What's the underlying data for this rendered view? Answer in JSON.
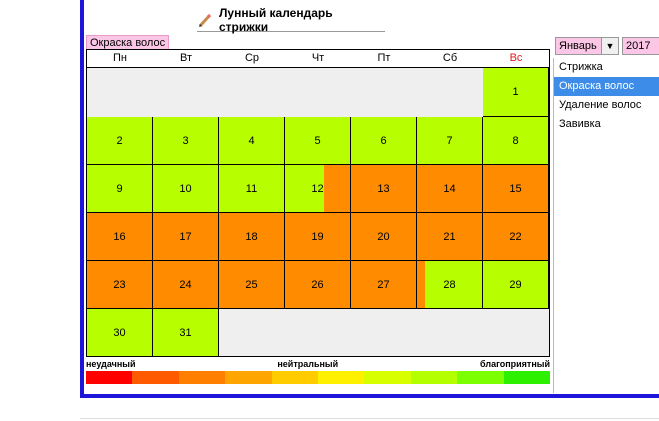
{
  "title": "Лунный календарь стрижки",
  "category_tag": "Окраска волос",
  "month_select": "Январь",
  "year_select": "2017",
  "weekdays": [
    "Пн",
    "Вт",
    "Ср",
    "Чт",
    "Пт",
    "Сб",
    "Вс"
  ],
  "days": [
    {
      "day": "1",
      "row": 0,
      "col": 6,
      "type": "good"
    },
    {
      "day": "2",
      "row": 1,
      "col": 0,
      "type": "good"
    },
    {
      "day": "3",
      "row": 1,
      "col": 1,
      "type": "good"
    },
    {
      "day": "4",
      "row": 1,
      "col": 2,
      "type": "good"
    },
    {
      "day": "5",
      "row": 1,
      "col": 3,
      "type": "good"
    },
    {
      "day": "6",
      "row": 1,
      "col": 4,
      "type": "good"
    },
    {
      "day": "7",
      "row": 1,
      "col": 5,
      "type": "good"
    },
    {
      "day": "8",
      "row": 1,
      "col": 6,
      "type": "good"
    },
    {
      "day": "9",
      "row": 2,
      "col": 0,
      "type": "good"
    },
    {
      "day": "10",
      "row": 2,
      "col": 1,
      "type": "good"
    },
    {
      "day": "11",
      "row": 2,
      "col": 2,
      "type": "good"
    },
    {
      "day": "12",
      "row": 2,
      "col": 3,
      "type": "split-good-bad"
    },
    {
      "day": "13",
      "row": 2,
      "col": 4,
      "type": "bad"
    },
    {
      "day": "14",
      "row": 2,
      "col": 5,
      "type": "bad"
    },
    {
      "day": "15",
      "row": 2,
      "col": 6,
      "type": "bad"
    },
    {
      "day": "16",
      "row": 3,
      "col": 0,
      "type": "bad"
    },
    {
      "day": "17",
      "row": 3,
      "col": 1,
      "type": "bad"
    },
    {
      "day": "18",
      "row": 3,
      "col": 2,
      "type": "bad"
    },
    {
      "day": "19",
      "row": 3,
      "col": 3,
      "type": "bad"
    },
    {
      "day": "20",
      "row": 3,
      "col": 4,
      "type": "bad"
    },
    {
      "day": "21",
      "row": 3,
      "col": 5,
      "type": "bad"
    },
    {
      "day": "22",
      "row": 3,
      "col": 6,
      "type": "bad"
    },
    {
      "day": "23",
      "row": 4,
      "col": 0,
      "type": "bad"
    },
    {
      "day": "24",
      "row": 4,
      "col": 1,
      "type": "bad"
    },
    {
      "day": "25",
      "row": 4,
      "col": 2,
      "type": "bad"
    },
    {
      "day": "26",
      "row": 4,
      "col": 3,
      "type": "bad"
    },
    {
      "day": "27",
      "row": 4,
      "col": 4,
      "type": "bad"
    },
    {
      "day": "28",
      "row": 4,
      "col": 5,
      "type": "split-bad-good"
    },
    {
      "day": "29",
      "row": 4,
      "col": 6,
      "type": "good"
    },
    {
      "day": "30",
      "row": 5,
      "col": 0,
      "type": "good"
    },
    {
      "day": "31",
      "row": 5,
      "col": 1,
      "type": "good"
    }
  ],
  "colors": {
    "good": "#b7ff00",
    "bad": "#ff8c00",
    "empty": "#efefef",
    "frame": "#1d16d8",
    "selected": "#3d8ce8",
    "tag": "#fcc6e6"
  },
  "legend": {
    "bad_label": "неудачный",
    "neutral_label": "нейтральный",
    "good_label": "благоприятный",
    "gradient": [
      "#ff0000",
      "#ff5a00",
      "#ff7f00",
      "#ffa500",
      "#ffcc00",
      "#fff000",
      "#d8ff00",
      "#b4ff00",
      "#7cff00",
      "#2cf000"
    ]
  },
  "list": {
    "items": [
      "Стрижка",
      "Окраска волос",
      "Удаление волос",
      "Завивка"
    ],
    "selected": 1
  }
}
